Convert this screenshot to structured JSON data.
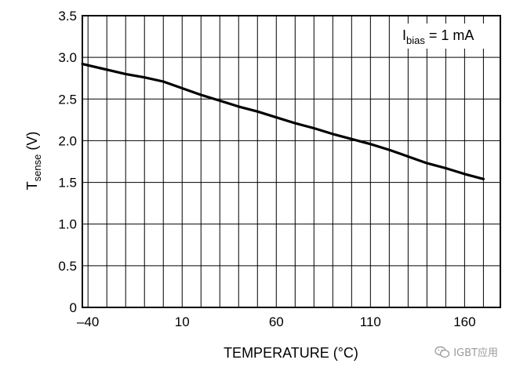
{
  "chart_data": {
    "type": "line",
    "xlabel": "TEMPERATURE (°C)",
    "ylabel_main": "T",
    "ylabel_sub": "sense",
    "ylabel_unit": " (V)",
    "xlim": [
      -43,
      179
    ],
    "ylim": [
      0,
      3.5
    ],
    "x_ticks": [
      {
        "value": -40,
        "label": "–40"
      },
      {
        "value": 10,
        "label": "10"
      },
      {
        "value": 60,
        "label": "60"
      },
      {
        "value": 110,
        "label": "110"
      },
      {
        "value": 160,
        "label": "160"
      }
    ],
    "y_ticks": [
      {
        "value": 0,
        "label": "0"
      },
      {
        "value": 0.5,
        "label": "0.5"
      },
      {
        "value": 1.0,
        "label": "1.0"
      },
      {
        "value": 1.5,
        "label": "1.5"
      },
      {
        "value": 2.0,
        "label": "2.0"
      },
      {
        "value": 2.5,
        "label": "2.5"
      },
      {
        "value": 3.0,
        "label": "3.0"
      },
      {
        "value": 3.5,
        "label": "3.5"
      }
    ],
    "x_minor_step": 10,
    "y_minor_step": 0.5,
    "grid": true,
    "annotation": {
      "main": "I",
      "sub": "bias",
      "rest": " = 1 mA",
      "placement": "top-right"
    },
    "series": [
      {
        "name": "Tsense",
        "x": [
          -43,
          -20,
          -10,
          0,
          10,
          20,
          30,
          40,
          50,
          60,
          70,
          80,
          90,
          100,
          110,
          120,
          130,
          140,
          150,
          160,
          170
        ],
        "y": [
          2.92,
          2.8,
          2.76,
          2.71,
          2.63,
          2.55,
          2.48,
          2.41,
          2.35,
          2.28,
          2.21,
          2.15,
          2.08,
          2.02,
          1.96,
          1.89,
          1.81,
          1.73,
          1.67,
          1.6,
          1.54
        ]
      }
    ]
  },
  "watermark": {
    "icon": "wechat-icon",
    "text": "IGBT应用"
  }
}
